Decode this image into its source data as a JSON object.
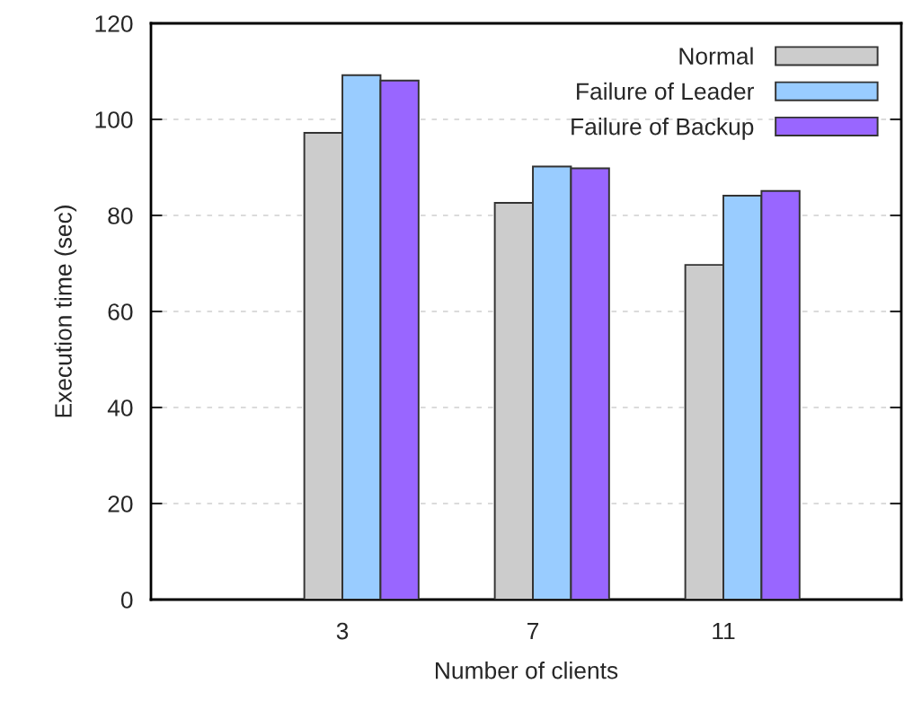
{
  "chart_data": {
    "type": "bar",
    "xlabel": "Number of clients",
    "ylabel": "Execution time (sec)",
    "categories": [
      "3",
      "7",
      "11"
    ],
    "series": [
      {
        "name": "Normal",
        "color": "#cccccc",
        "values": [
          97.2,
          82.6,
          69.7
        ]
      },
      {
        "name": "Failure of Leader",
        "color": "#99ccff",
        "values": [
          109.2,
          90.2,
          84.1
        ]
      },
      {
        "name": "Failure of Backup",
        "color": "#9966ff",
        "values": [
          108.1,
          89.8,
          85.1
        ]
      }
    ],
    "ylim": [
      0,
      120
    ],
    "yticks": [
      0,
      20,
      40,
      60,
      80,
      100,
      120
    ],
    "grid": "y",
    "legend": "top right"
  }
}
